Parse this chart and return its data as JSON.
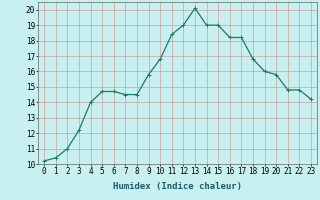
{
  "x": [
    0,
    1,
    2,
    3,
    4,
    5,
    6,
    7,
    8,
    9,
    10,
    11,
    12,
    13,
    14,
    15,
    16,
    17,
    18,
    19,
    20,
    21,
    22,
    23
  ],
  "y": [
    10.2,
    10.4,
    11.0,
    12.2,
    14.0,
    14.7,
    14.7,
    14.5,
    14.5,
    15.8,
    16.8,
    18.4,
    19.0,
    20.1,
    19.0,
    19.0,
    18.2,
    18.2,
    16.8,
    16.0,
    15.8,
    14.8,
    14.8,
    14.2
  ],
  "line_color": "#1a7a6a",
  "marker": "+",
  "bg_color": "#c8f0f0",
  "grid_color": "#d0a0a0",
  "xlabel": "Humidex (Indice chaleur)",
  "xlim": [
    -0.5,
    23.5
  ],
  "ylim": [
    10,
    20.5
  ],
  "yticks": [
    10,
    11,
    12,
    13,
    14,
    15,
    16,
    17,
    18,
    19,
    20
  ],
  "xticks": [
    0,
    1,
    2,
    3,
    4,
    5,
    6,
    7,
    8,
    9,
    10,
    11,
    12,
    13,
    14,
    15,
    16,
    17,
    18,
    19,
    20,
    21,
    22,
    23
  ],
  "xtick_labels": [
    "0",
    "1",
    "2",
    "3",
    "4",
    "5",
    "6",
    "7",
    "8",
    "9",
    "10",
    "11",
    "12",
    "13",
    "14",
    "15",
    "16",
    "17",
    "18",
    "19",
    "20",
    "21",
    "22",
    "23"
  ],
  "ytick_labels": [
    "10",
    "11",
    "12",
    "13",
    "14",
    "15",
    "16",
    "17",
    "18",
    "19",
    "20"
  ],
  "tick_fontsize": 5.5,
  "xlabel_fontsize": 6.5,
  "line_width": 0.9,
  "marker_size": 3,
  "marker_ew": 0.7
}
